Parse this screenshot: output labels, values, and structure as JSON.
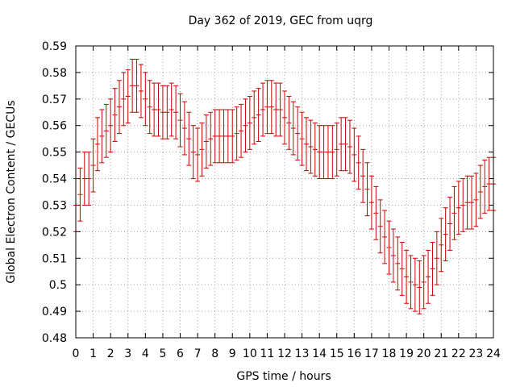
{
  "chart_data": {
    "type": "scatter",
    "title": "Day 362 of 2019, GEC from uqrg",
    "xlabel": "GPS time / hours",
    "ylabel": "Global Electron Content / GECUs",
    "xlim": [
      0,
      24
    ],
    "ylim": [
      0.48,
      0.59
    ],
    "xticks": [
      "0",
      "1",
      "2",
      "3",
      "4",
      "5",
      "6",
      "7",
      "8",
      "9",
      "10",
      "11",
      "12",
      "13",
      "14",
      "15",
      "16",
      "17",
      "18",
      "19",
      "20",
      "21",
      "22",
      "23",
      "24"
    ],
    "yticks": [
      "0.48",
      "0.49",
      "0.5",
      "0.51",
      "0.52",
      "0.53",
      "0.54",
      "0.55",
      "0.56",
      "0.57",
      "0.58",
      "0.59"
    ],
    "grid": true,
    "series_color": "#cc0000",
    "series": [
      {
        "name": "GEC",
        "x": [
          0,
          0.25,
          0.5,
          0.75,
          1,
          1.25,
          1.5,
          1.75,
          2,
          2.25,
          2.5,
          2.75,
          3,
          3.25,
          3.5,
          3.75,
          4,
          4.25,
          4.5,
          4.75,
          5,
          5.25,
          5.5,
          5.75,
          6,
          6.25,
          6.5,
          6.75,
          7,
          7.25,
          7.5,
          7.75,
          8,
          8.25,
          8.5,
          8.75,
          9,
          9.25,
          9.5,
          9.75,
          10,
          10.25,
          10.5,
          10.75,
          11,
          11.25,
          11.5,
          11.75,
          12,
          12.25,
          12.5,
          12.75,
          13,
          13.25,
          13.5,
          13.75,
          14,
          14.25,
          14.5,
          14.75,
          15,
          15.25,
          15.5,
          15.75,
          16,
          16.25,
          16.5,
          16.75,
          17,
          17.25,
          17.5,
          17.75,
          18,
          18.25,
          18.5,
          18.75,
          19,
          19.25,
          19.5,
          19.75,
          20,
          20.25,
          20.5,
          20.75,
          21,
          21.25,
          21.5,
          21.75,
          22,
          22.25,
          22.5,
          22.75,
          23,
          23.25,
          23.5,
          23.75,
          24
        ],
        "y": [
          0.53,
          0.534,
          0.54,
          0.54,
          0.545,
          0.553,
          0.556,
          0.558,
          0.56,
          0.564,
          0.567,
          0.57,
          0.571,
          0.575,
          0.575,
          0.573,
          0.57,
          0.567,
          0.566,
          0.566,
          0.565,
          0.565,
          0.566,
          0.565,
          0.562,
          0.559,
          0.555,
          0.55,
          0.549,
          0.551,
          0.554,
          0.555,
          0.556,
          0.556,
          0.556,
          0.556,
          0.556,
          0.557,
          0.558,
          0.56,
          0.561,
          0.563,
          0.564,
          0.566,
          0.567,
          0.567,
          0.566,
          0.566,
          0.563,
          0.561,
          0.559,
          0.557,
          0.555,
          0.553,
          0.552,
          0.551,
          0.55,
          0.55,
          0.55,
          0.55,
          0.551,
          0.553,
          0.553,
          0.552,
          0.549,
          0.546,
          0.541,
          0.536,
          0.531,
          0.527,
          0.522,
          0.518,
          0.514,
          0.511,
          0.508,
          0.506,
          0.503,
          0.501,
          0.5,
          0.499,
          0.501,
          0.503,
          0.506,
          0.51,
          0.515,
          0.519,
          0.523,
          0.527,
          0.529,
          0.53,
          0.531,
          0.531,
          0.532,
          0.535,
          0.537,
          0.538,
          0.538
        ],
        "err": [
          0.01,
          0.01,
          0.01,
          0.01,
          0.01,
          0.01,
          0.01,
          0.01,
          0.01,
          0.01,
          0.01,
          0.01,
          0.01,
          0.01,
          0.01,
          0.01,
          0.01,
          0.01,
          0.01,
          0.01,
          0.01,
          0.01,
          0.01,
          0.01,
          0.01,
          0.01,
          0.01,
          0.01,
          0.01,
          0.01,
          0.01,
          0.01,
          0.01,
          0.01,
          0.01,
          0.01,
          0.01,
          0.01,
          0.01,
          0.01,
          0.01,
          0.01,
          0.01,
          0.01,
          0.01,
          0.01,
          0.01,
          0.01,
          0.01,
          0.01,
          0.01,
          0.01,
          0.01,
          0.01,
          0.01,
          0.01,
          0.01,
          0.01,
          0.01,
          0.01,
          0.01,
          0.01,
          0.01,
          0.01,
          0.01,
          0.01,
          0.01,
          0.01,
          0.01,
          0.01,
          0.01,
          0.01,
          0.01,
          0.01,
          0.01,
          0.01,
          0.01,
          0.01,
          0.01,
          0.01,
          0.01,
          0.01,
          0.01,
          0.01,
          0.01,
          0.01,
          0.01,
          0.01,
          0.01,
          0.01,
          0.01,
          0.01,
          0.01,
          0.01,
          0.01,
          0.01,
          0.01
        ]
      }
    ]
  }
}
